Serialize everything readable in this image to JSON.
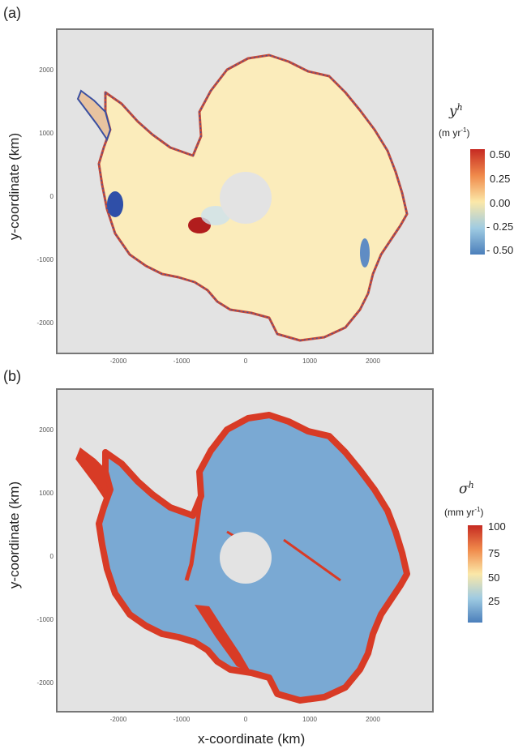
{
  "panels": [
    {
      "label": "(a)",
      "ylabel": "y-coordinate (km)",
      "legend": {
        "symbol": "y",
        "sup": "h",
        "unit_base": "(m yr",
        "unit_sup": "-1",
        "unit_end": ")",
        "ticks": [
          "0.50",
          "0.25",
          "0.00",
          "- 0.25",
          "- 0.50"
        ],
        "colors": [
          "#c62a22",
          "#f08a4b",
          "#fbe8a8",
          "#9fcbe2",
          "#4b7fbb"
        ]
      },
      "xticks": [
        "-2000",
        "-1000",
        "0",
        "1000",
        "2000"
      ],
      "yticks": [
        "2000",
        "1000",
        "0",
        "-1000",
        "-2000"
      ],
      "background": "#e3e3e3",
      "base_fill": "#fbecbb"
    },
    {
      "label": "(b)",
      "ylabel": "y-coordinate (km)",
      "xlabel": "x-coordinate (km)",
      "legend": {
        "symbol": "σ",
        "sup": "h",
        "unit_base": "(mm yr",
        "unit_sup": "-1",
        "unit_end": ")",
        "ticks": [
          "100",
          "75",
          "50",
          "25"
        ],
        "colors": [
          "#c62a22",
          "#f08a4b",
          "#fbe8a8",
          "#9fcbe2",
          "#4b7fbb"
        ]
      },
      "xticks": [
        "-2000",
        "-1000",
        "0",
        "1000",
        "2000"
      ],
      "yticks": [
        "2000",
        "1000",
        "0",
        "-1000",
        "-2000"
      ],
      "background": "#e3e3e3",
      "base_fill": "#7aa9d3"
    }
  ],
  "chart_data": [
    {
      "type": "heatmap",
      "title": "",
      "xlabel": "",
      "ylabel": "y-coordinate (km)",
      "xlim": [
        -2900,
        2900
      ],
      "ylim": [
        -2400,
        2500
      ],
      "colorbar": {
        "label": "y^h",
        "unit": "(m yr-1)",
        "range": [
          -0.5,
          0.5
        ],
        "ticks": [
          0.5,
          0.25,
          0.0,
          -0.25,
          -0.5
        ]
      }
    },
    {
      "type": "heatmap",
      "title": "",
      "xlabel": "x-coordinate (km)",
      "ylabel": "y-coordinate (km)",
      "xlim": [
        -2900,
        2900
      ],
      "ylim": [
        -2400,
        2500
      ],
      "colorbar": {
        "label": "σ^h",
        "unit": "(mm yr-1)",
        "range": [
          0,
          110
        ],
        "ticks": [
          100,
          75,
          50,
          25
        ]
      }
    }
  ]
}
